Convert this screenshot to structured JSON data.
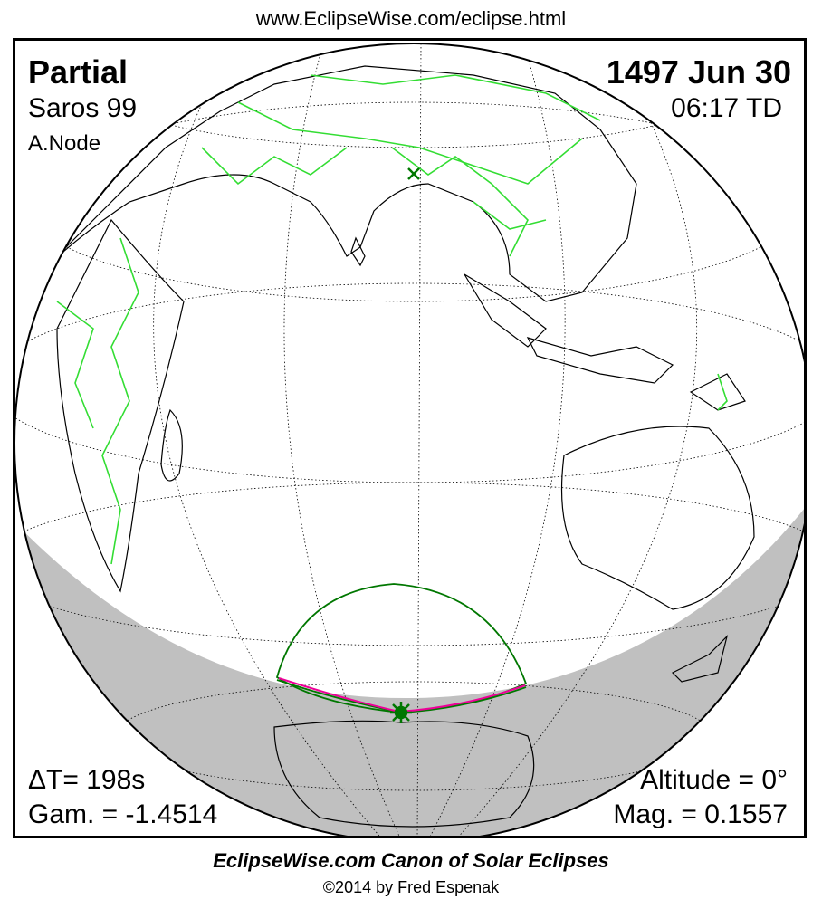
{
  "url": "www.EclipseWise.com/eclipse.html",
  "eclipse": {
    "type": "Partial",
    "date": "1497 Jun 30",
    "saros": "Saros  99",
    "time": "06:17 TD",
    "node": "A.Node",
    "delta_t": "ΔT=    198s",
    "gamma": "Gam. = -1.4514",
    "altitude": "Altitude =  0°",
    "magnitude": "Mag. = 0.1557"
  },
  "footer": {
    "title": "EclipseWise.com Canon of Solar Eclipses",
    "copyright": "©2014 by Fred Espenak"
  },
  "colors": {
    "borders": "#33dd33",
    "eclipse_limits": "#007700",
    "central_curve": "#ee0099",
    "night": "#c0c0c0"
  },
  "markers": {
    "subsolar": "x-mark",
    "greatest_eclipse": "star-mark"
  }
}
